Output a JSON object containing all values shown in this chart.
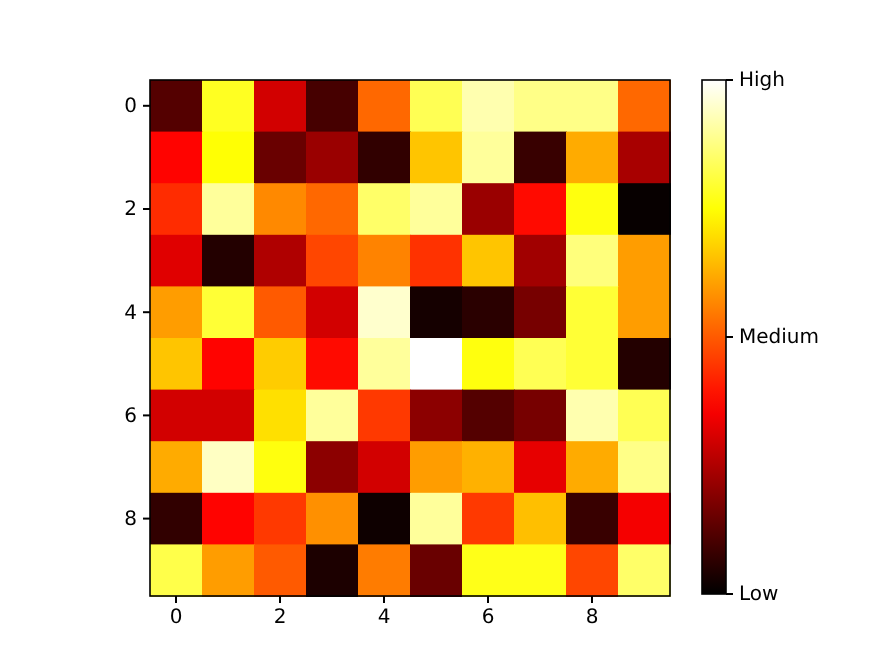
{
  "chart_data": {
    "type": "heatmap",
    "categories": [
      "0",
      null,
      "2",
      null,
      "4",
      null,
      "6",
      null,
      "8",
      null
    ],
    "y_categories": [
      "0",
      null,
      "2",
      null,
      "4",
      null,
      "6",
      null,
      "8",
      null
    ],
    "cells": [
      [
        0.12,
        0.78,
        0.3,
        0.1,
        0.52,
        0.83,
        0.92,
        0.88,
        0.88,
        0.52
      ],
      [
        0.37,
        0.75,
        0.15,
        0.22,
        0.07,
        0.66,
        0.9,
        0.08,
        0.62,
        0.24
      ],
      [
        0.43,
        0.9,
        0.57,
        0.52,
        0.85,
        0.9,
        0.22,
        0.38,
        0.76,
        0.01
      ],
      [
        0.32,
        0.05,
        0.25,
        0.47,
        0.56,
        0.44,
        0.66,
        0.23,
        0.87,
        0.6
      ],
      [
        0.6,
        0.8,
        0.5,
        0.3,
        0.95,
        0.03,
        0.06,
        0.17,
        0.8,
        0.6
      ],
      [
        0.66,
        0.37,
        0.67,
        0.38,
        0.9,
        1.0,
        0.76,
        0.83,
        0.8,
        0.05
      ],
      [
        0.3,
        0.3,
        0.7,
        0.9,
        0.45,
        0.2,
        0.12,
        0.17,
        0.92,
        0.83
      ],
      [
        0.62,
        0.94,
        0.76,
        0.2,
        0.3,
        0.6,
        0.63,
        0.33,
        0.62,
        0.88
      ],
      [
        0.07,
        0.37,
        0.45,
        0.58,
        0.02,
        0.9,
        0.45,
        0.65,
        0.08,
        0.35
      ],
      [
        0.82,
        0.6,
        0.5,
        0.04,
        0.55,
        0.15,
        0.77,
        0.77,
        0.47,
        0.85
      ]
    ],
    "clim": [
      0,
      1
    ],
    "cticks": [
      {
        "value": 0,
        "label": "Low"
      },
      {
        "value": 0.5,
        "label": "Medium"
      },
      {
        "value": 1,
        "label": "High"
      }
    ]
  }
}
